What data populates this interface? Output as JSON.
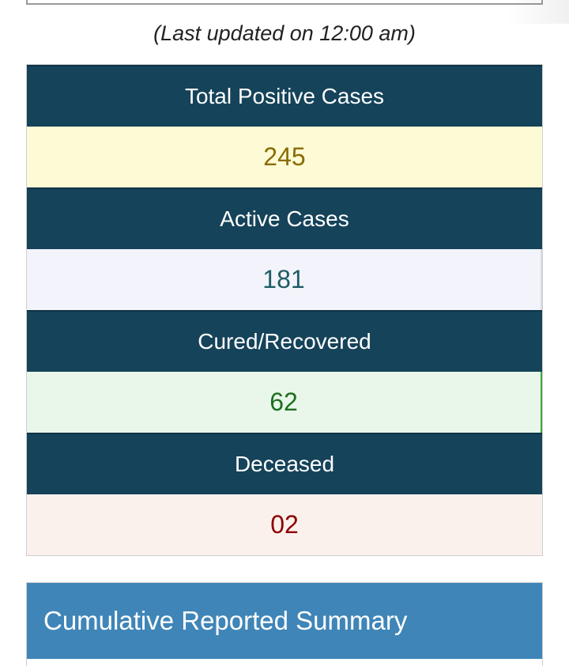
{
  "last_updated": "(Last updated on 12:00 am)",
  "stats": {
    "total_positive": {
      "label": "Total Positive Cases",
      "value": "245"
    },
    "active": {
      "label": "Active Cases",
      "value": "181"
    },
    "cured": {
      "label": "Cured/Recovered",
      "value": "62"
    },
    "deceased": {
      "label": "Deceased",
      "value": "02"
    }
  },
  "summary": {
    "title": "Cumulative Reported Summary"
  },
  "colors": {
    "header_bg": "#15435a",
    "summary_bg": "#3f85b8",
    "positive_text": "#8a6b00",
    "active_text": "#1f5c65",
    "cured_text": "#1e6e1e",
    "deceased_text": "#8b0000"
  }
}
